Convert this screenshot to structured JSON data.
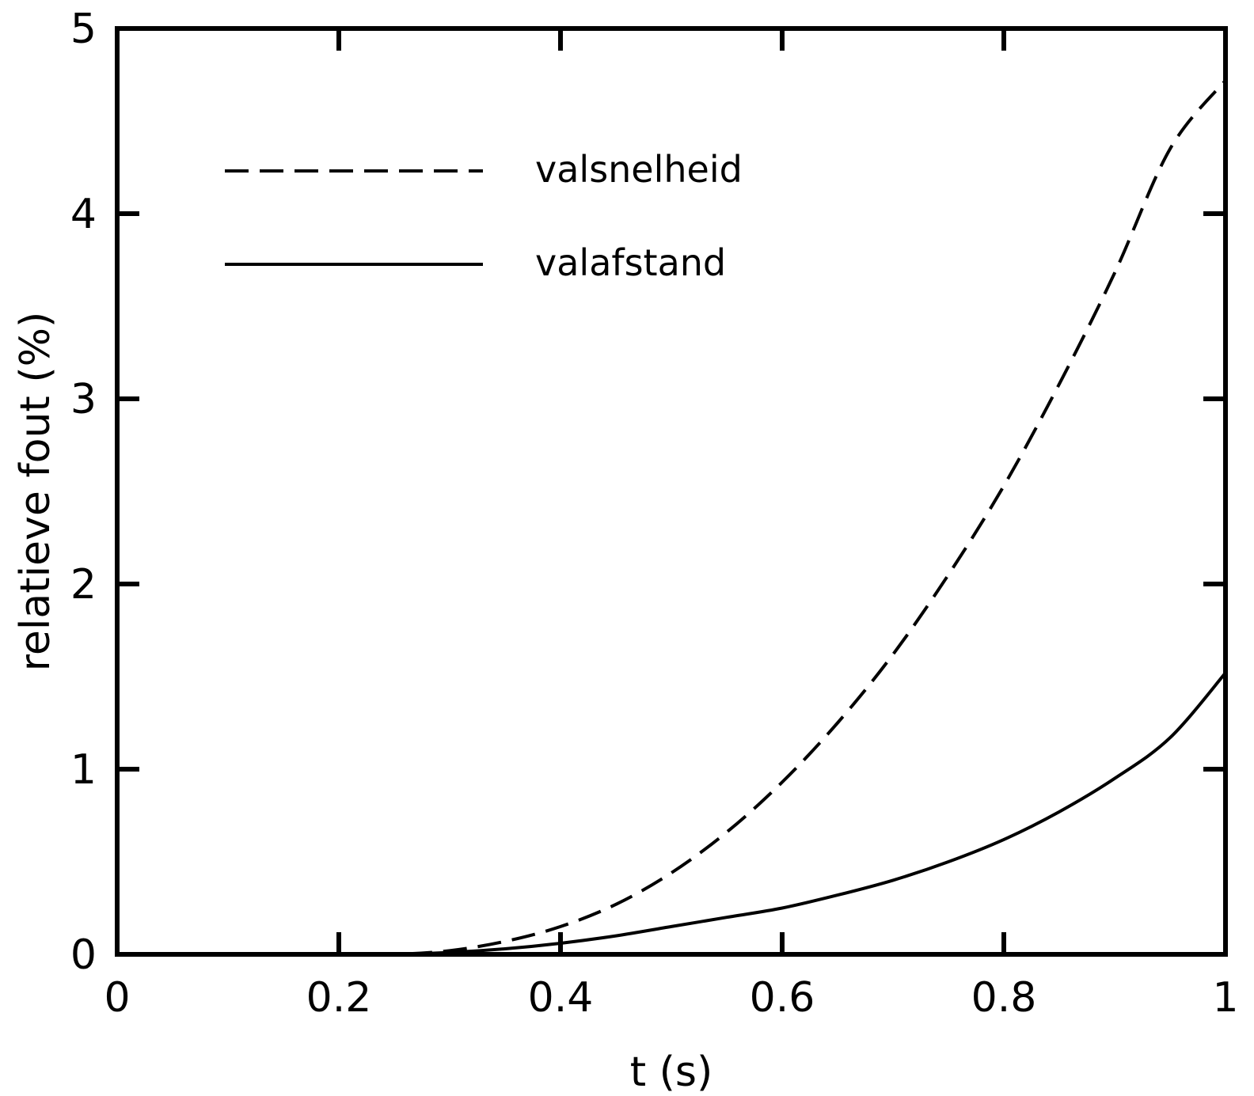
{
  "chart_data": {
    "type": "line",
    "title": "",
    "xlabel": "t (s)",
    "ylabel": "relatieve fout (%)",
    "xlim": [
      0,
      1
    ],
    "ylim": [
      0,
      5
    ],
    "grid": false,
    "legend_position": "top-left",
    "x_ticks": [
      "0",
      "0.2",
      "0.4",
      "0.6",
      "0.8",
      "1"
    ],
    "y_ticks": [
      "0",
      "1",
      "2",
      "3",
      "4",
      "5"
    ],
    "series": [
      {
        "name": "valsnelheid",
        "style": "dashed",
        "color": "#000000",
        "x": [
          0.2,
          0.25,
          0.3,
          0.35,
          0.4,
          0.45,
          0.5,
          0.55,
          0.6,
          0.65,
          0.7,
          0.75,
          0.8,
          0.85,
          0.9,
          0.95,
          1.0
        ],
        "y": [
          0.0,
          0.0,
          0.02,
          0.07,
          0.15,
          0.27,
          0.44,
          0.66,
          0.93,
          1.25,
          1.62,
          2.05,
          2.53,
          3.08,
          3.68,
          4.35,
          4.72
        ]
      },
      {
        "name": "valafstand",
        "style": "solid",
        "color": "#000000",
        "x": [
          0.2,
          0.25,
          0.3,
          0.35,
          0.4,
          0.45,
          0.5,
          0.55,
          0.6,
          0.65,
          0.7,
          0.75,
          0.8,
          0.85,
          0.9,
          0.95,
          1.0
        ],
        "y": [
          0.0,
          0.0,
          0.01,
          0.03,
          0.06,
          0.1,
          0.15,
          0.2,
          0.25,
          0.32,
          0.4,
          0.5,
          0.62,
          0.77,
          0.95,
          1.17,
          1.52
        ]
      }
    ]
  }
}
